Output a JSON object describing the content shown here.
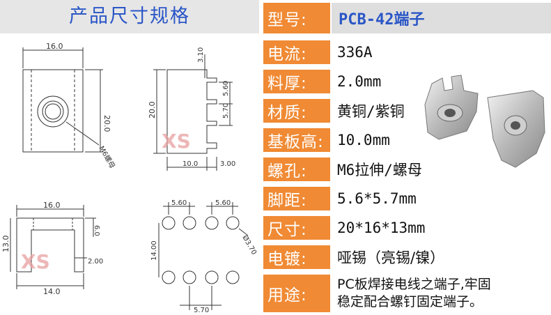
{
  "title": "产品尺寸规格",
  "watermark": "XS",
  "specs": [
    {
      "label": "型号:",
      "value": "PCB-42端子"
    },
    {
      "label": "电流:",
      "value": "336A"
    },
    {
      "label": "料厚:",
      "value": "2.0mm"
    },
    {
      "label": "材质:",
      "value": "黄铜/紫铜"
    },
    {
      "label": "基板高:",
      "value": "10.0mm"
    },
    {
      "label": "螺孔:",
      "value": "M6拉伸/螺母"
    },
    {
      "label": "脚距:",
      "value": "5.6*5.7mm"
    },
    {
      "label": "尺寸:",
      "value": "20*16*13mm"
    },
    {
      "label": "电镀:",
      "value": "哑锡（亮锡/镍）"
    },
    {
      "label": "用途:",
      "value_lines": [
        "PC板焊接电线之端子,牢固",
        "稳定配合螺钉固定端子。"
      ]
    }
  ],
  "drawing_labels": {
    "top_width": "16.0",
    "top_height": "20.0",
    "nut_callout": "M6螺母",
    "side_top": "3.10",
    "side_pitch1": "5.60",
    "side_pitch2": "5.70",
    "side_height": "20.0",
    "side_base": "10.0",
    "side_thick": "3.00",
    "front_width": "16.0",
    "front_height": "13.0",
    "front_lip": "6.0",
    "front_thick": "2.00",
    "front_base": "14.0",
    "holes_pitch_a": "5.60",
    "holes_pitch_b": "5.60",
    "holes_dia": "Ø3.70",
    "holes_row": "14.00",
    "holes_pitch_c": "5.70"
  },
  "colors": {
    "accent": "#f08a34",
    "title_blue": "#2a56c6",
    "watermark": "#e8a0a0"
  }
}
